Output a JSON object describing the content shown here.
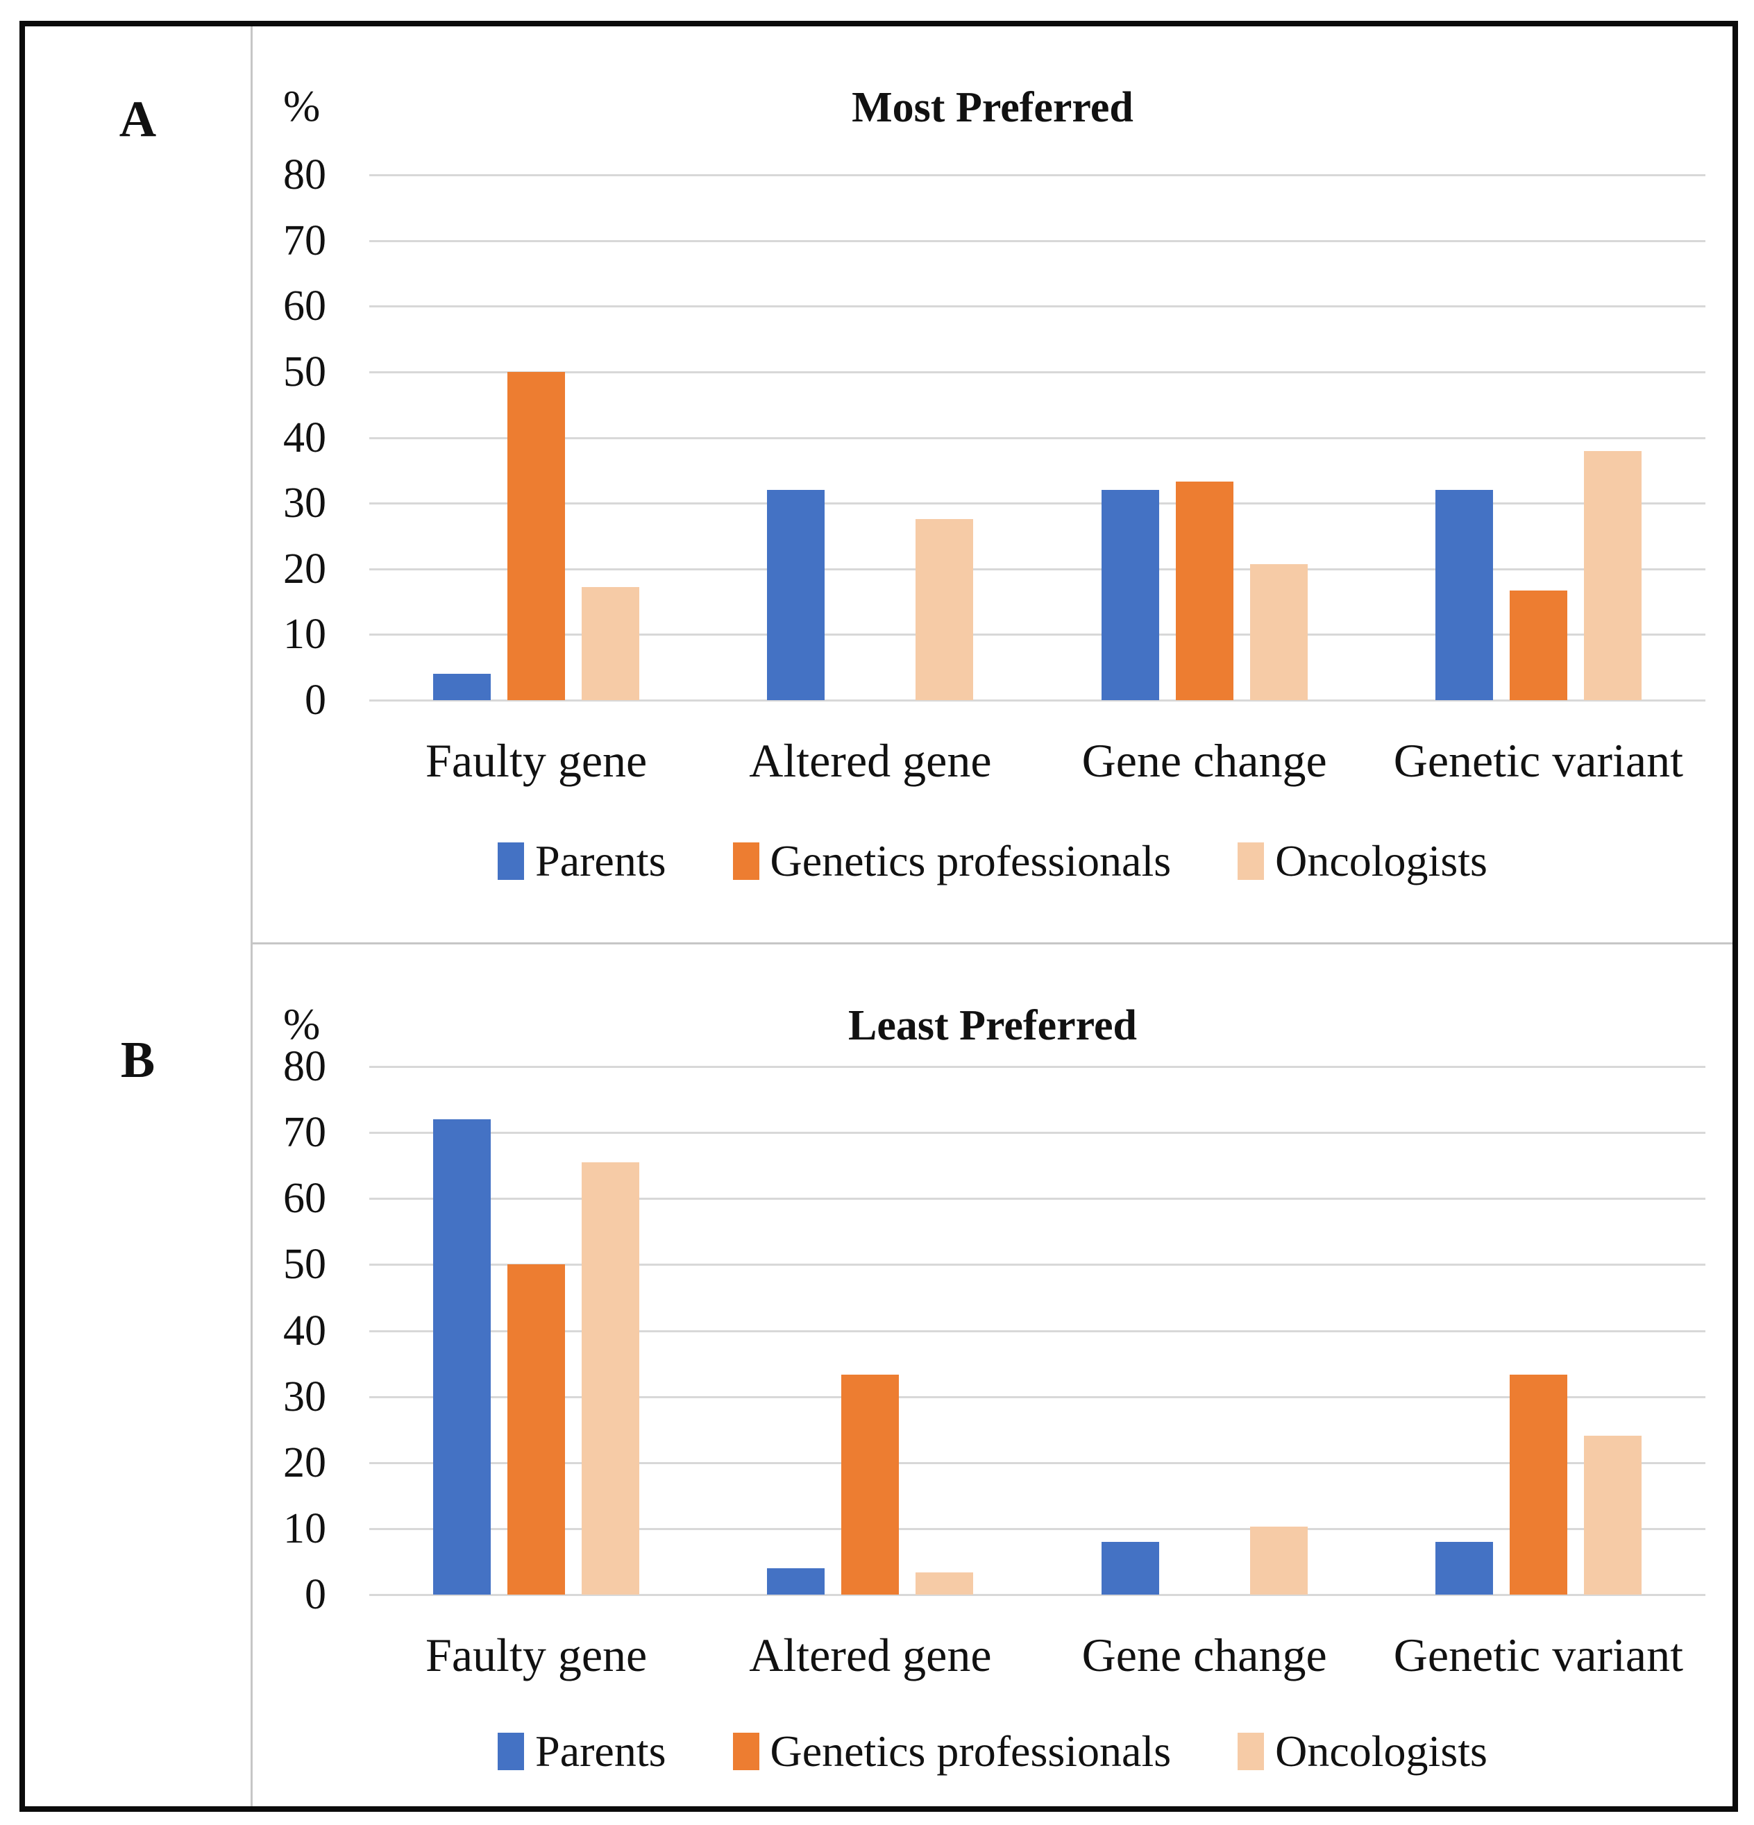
{
  "figure": {
    "panels": [
      {
        "panel_label": "A",
        "y_axis_unit": "%",
        "title": "Most Preferred"
      },
      {
        "panel_label": "B",
        "y_axis_unit": "%",
        "title": "Least Preferred"
      }
    ],
    "colors": {
      "parents_blue": "#4472C4",
      "genetics_orange": "#ED7D31",
      "oncologists_peach": "#F6CBA6",
      "gridline_gray": "#D8D8D8",
      "frame_black": "#0B0B0B",
      "divider_gray": "#C6C6C6"
    }
  },
  "chart_data": [
    {
      "type": "bar",
      "panel": "A",
      "title": "Most Preferred",
      "ylabel": "%",
      "ylim": [
        0,
        80
      ],
      "yticks": [
        80,
        70,
        60,
        50,
        40,
        30,
        20,
        10,
        0
      ],
      "grid": true,
      "legend_position": "bottom",
      "categories": [
        "Faulty gene",
        "Altered gene",
        "Gene change",
        "Genetic variant"
      ],
      "series": [
        {
          "name": "Parents",
          "color": "#4472C4",
          "values": [
            4,
            32,
            32,
            32
          ]
        },
        {
          "name": "Genetics professionals",
          "color": "#ED7D31",
          "values": [
            50,
            0,
            33.3,
            16.7
          ]
        },
        {
          "name": "Oncologists",
          "color": "#F6CBA6",
          "values": [
            17.2,
            27.6,
            20.7,
            37.9
          ]
        }
      ]
    },
    {
      "type": "bar",
      "panel": "B",
      "title": "Least Preferred",
      "ylabel": "%",
      "ylim": [
        0,
        80
      ],
      "yticks": [
        80,
        70,
        60,
        50,
        40,
        30,
        20,
        10,
        0
      ],
      "grid": true,
      "legend_position": "bottom",
      "categories": [
        "Faulty gene",
        "Altered gene",
        "Gene change",
        "Genetic variant"
      ],
      "series": [
        {
          "name": "Parents",
          "color": "#4472C4",
          "values": [
            72,
            4,
            8,
            8
          ]
        },
        {
          "name": "Genetics professionals",
          "color": "#ED7D31",
          "values": [
            50,
            33.3,
            0,
            33.3
          ]
        },
        {
          "name": "Oncologists",
          "color": "#F6CBA6",
          "values": [
            65.5,
            3.4,
            10.3,
            24.1
          ]
        }
      ]
    }
  ]
}
